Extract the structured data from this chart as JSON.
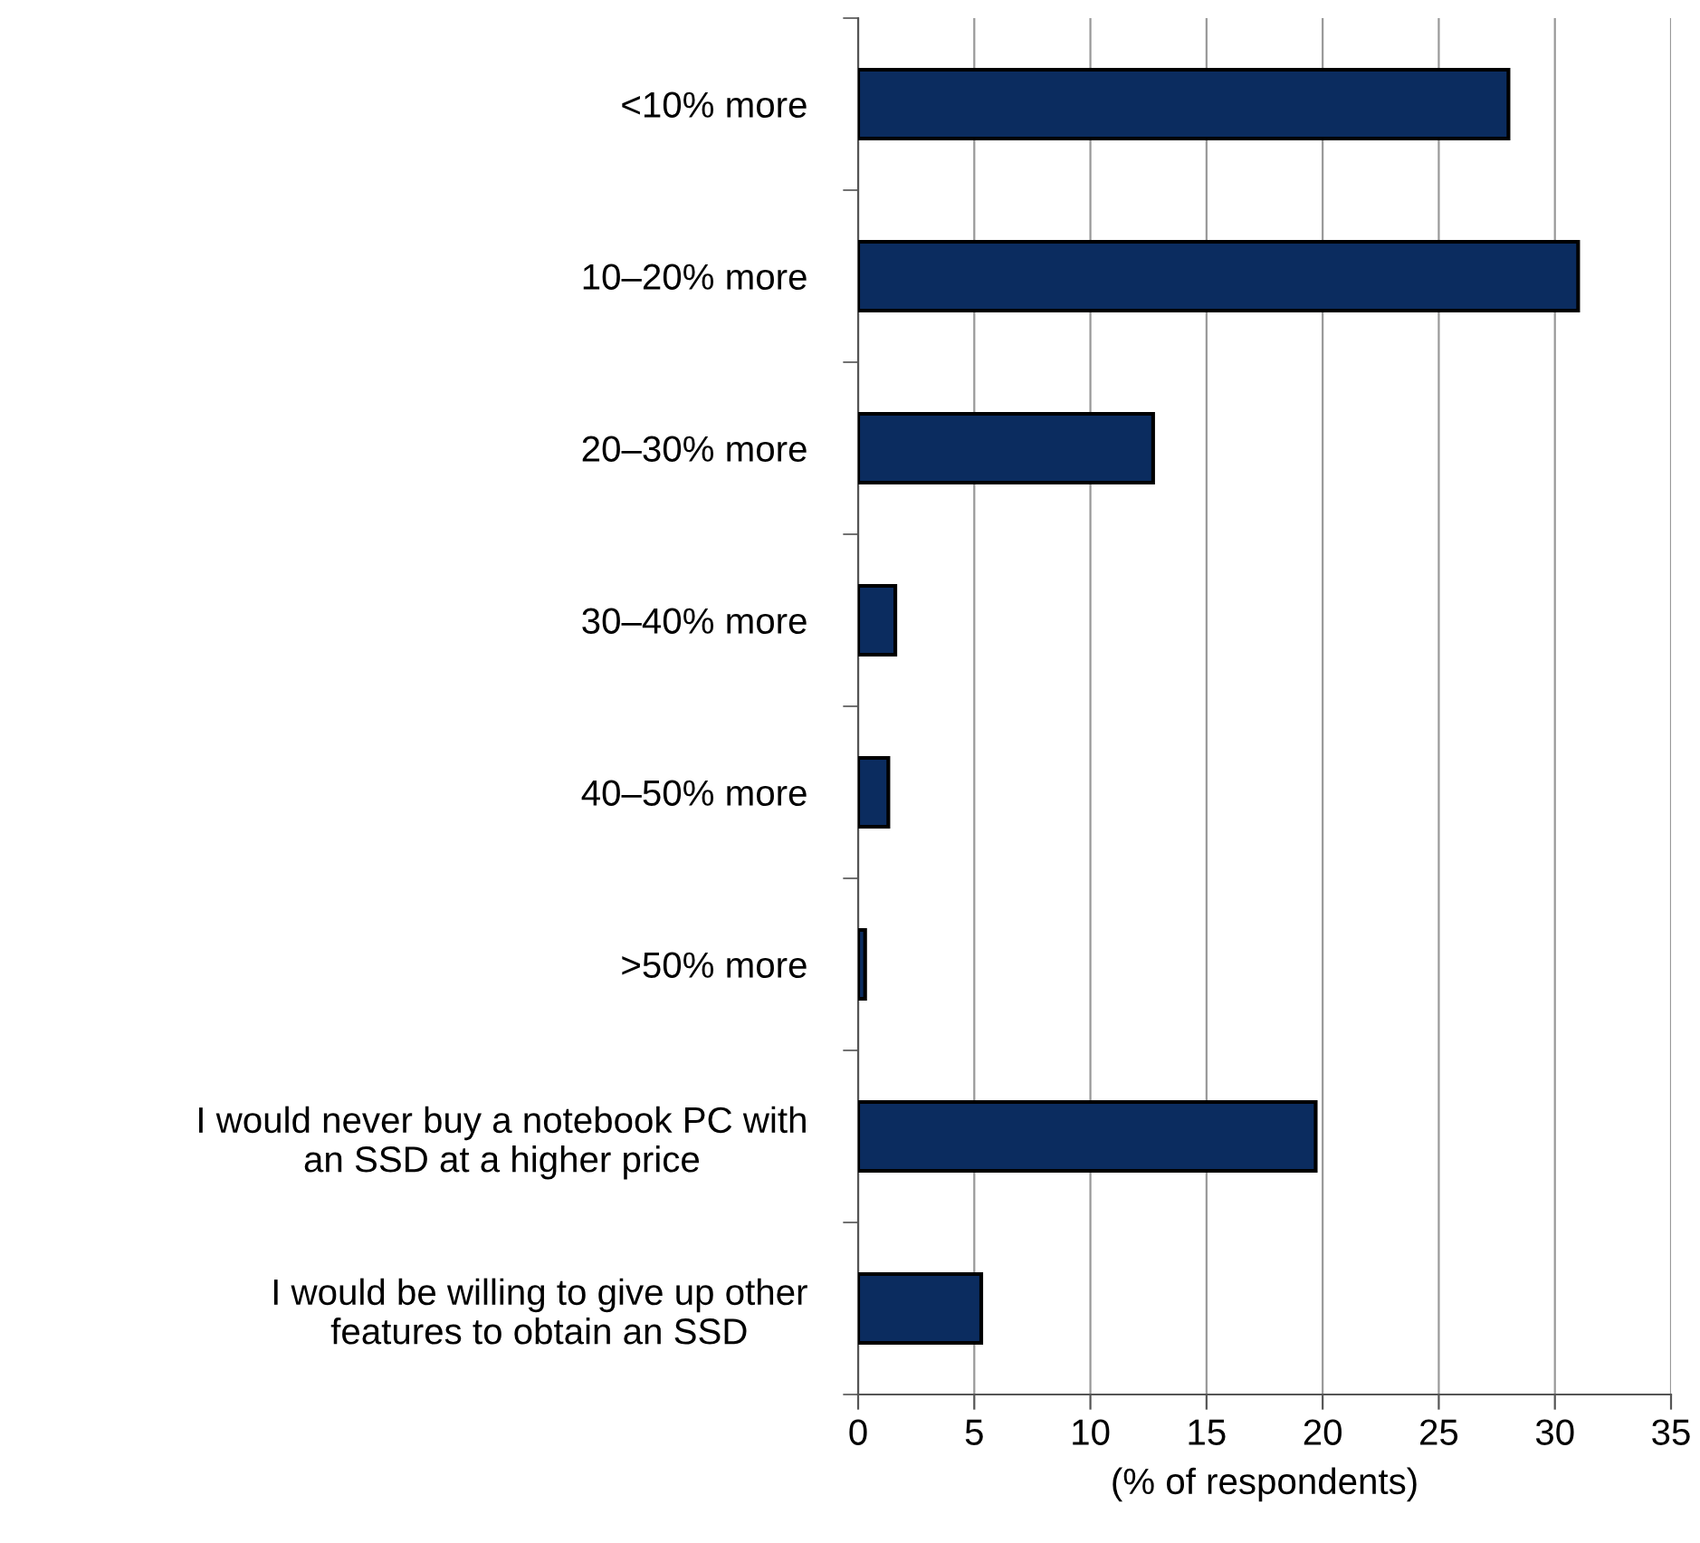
{
  "chart_data": {
    "type": "bar",
    "orientation": "horizontal",
    "categories": [
      "<10% more",
      "10–20% more",
      "20–30% more",
      "30–40% more",
      "40–50% more",
      ">50% more",
      "I would never buy a notebook PC with\nan SSD at a higher price",
      "I would be willing to give up other\nfeatures to obtain an SSD"
    ],
    "values": [
      28,
      31,
      12.7,
      1.6,
      1.3,
      0.3,
      19.7,
      5.3
    ],
    "color": "#0b2c5f",
    "xlabel": "(% of respondents)",
    "xlim": [
      0,
      35
    ],
    "xticks": [
      0,
      5,
      10,
      15,
      20,
      25,
      30,
      35
    ],
    "grid": "x",
    "legend": false
  }
}
